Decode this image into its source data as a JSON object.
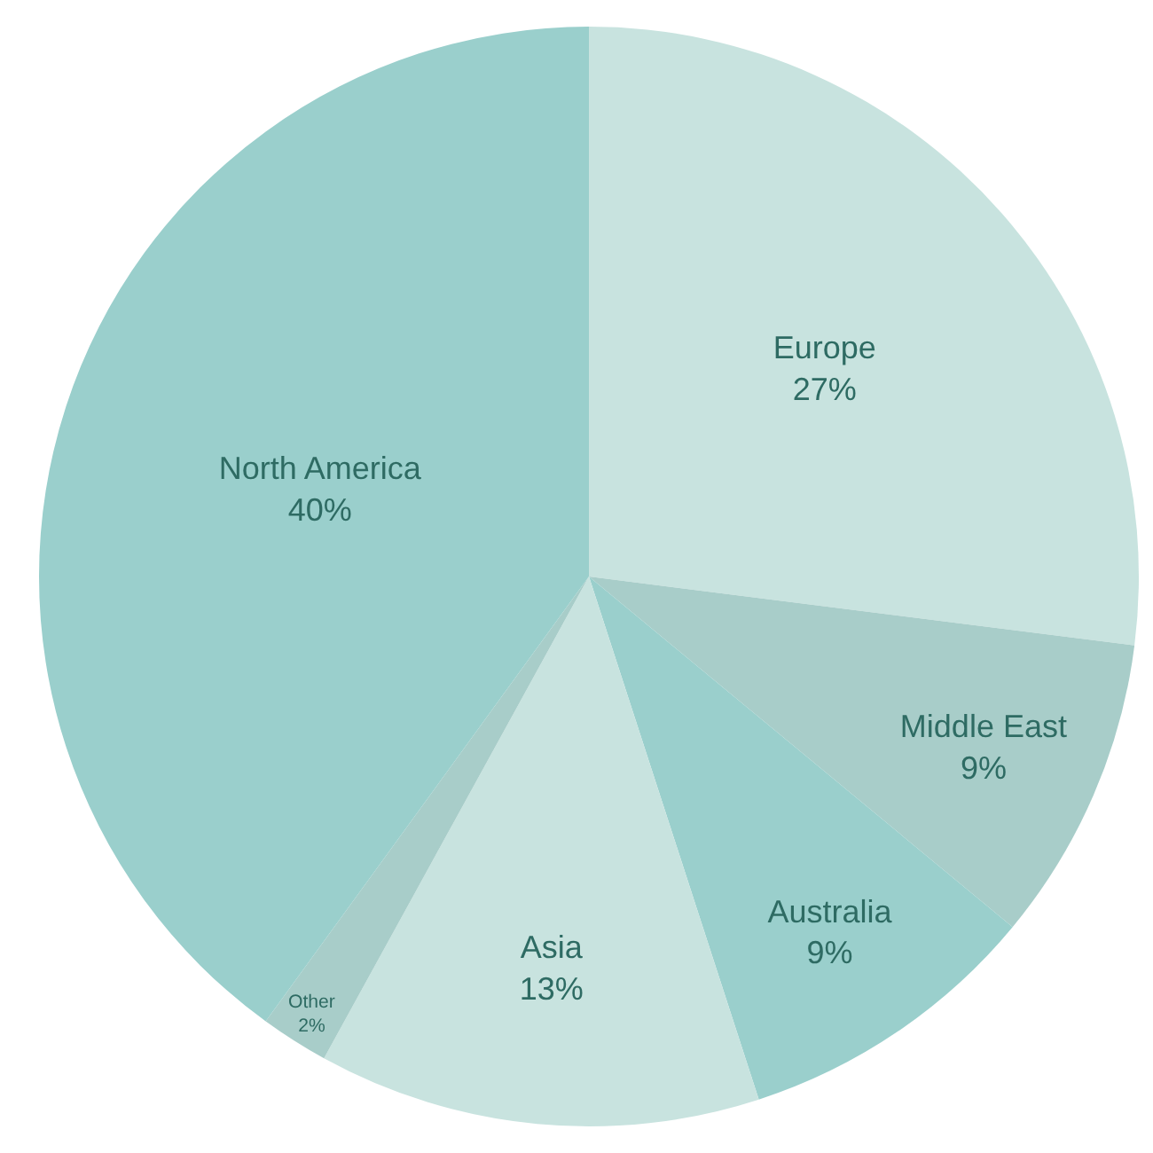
{
  "chart_data": {
    "type": "pie",
    "categories": [
      "Europe",
      "Middle East",
      "Australia",
      "Asia",
      "Other",
      "North America"
    ],
    "values": [
      27,
      9,
      9,
      13,
      2,
      40
    ],
    "value_labels": [
      "27%",
      "9%",
      "9%",
      "13%",
      "2%",
      "40%"
    ],
    "colors": [
      "#c8e3df",
      "#a8cdc9",
      "#9acfcc",
      "#c8e3df",
      "#a8cdc9",
      "#9acfcc"
    ],
    "legend": false
  }
}
